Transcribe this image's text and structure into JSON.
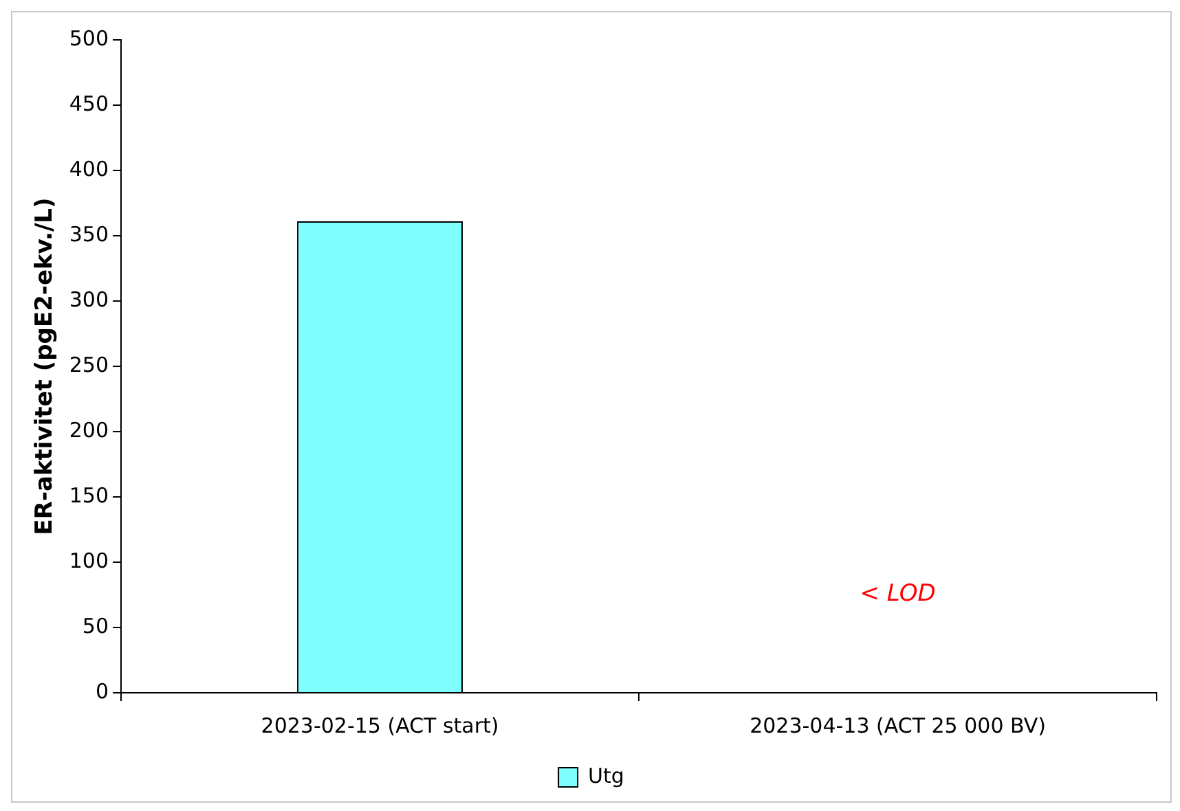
{
  "chart_data": {
    "type": "bar",
    "ylabel": "ER-aktivitet (pgE2-ekv./L)",
    "categories": [
      "2023-02-15 (ACT start)",
      "2023-04-13 (ACT 25 000 BV)"
    ],
    "series": [
      {
        "name": "Utg",
        "color": "#80ffff",
        "values": [
          361,
          null
        ]
      }
    ],
    "ylim": [
      0,
      500
    ],
    "yticks": [
      0,
      50,
      100,
      150,
      200,
      250,
      300,
      350,
      400,
      450,
      500
    ],
    "legend": "bottom",
    "annotations": [
      "< LOD"
    ]
  }
}
